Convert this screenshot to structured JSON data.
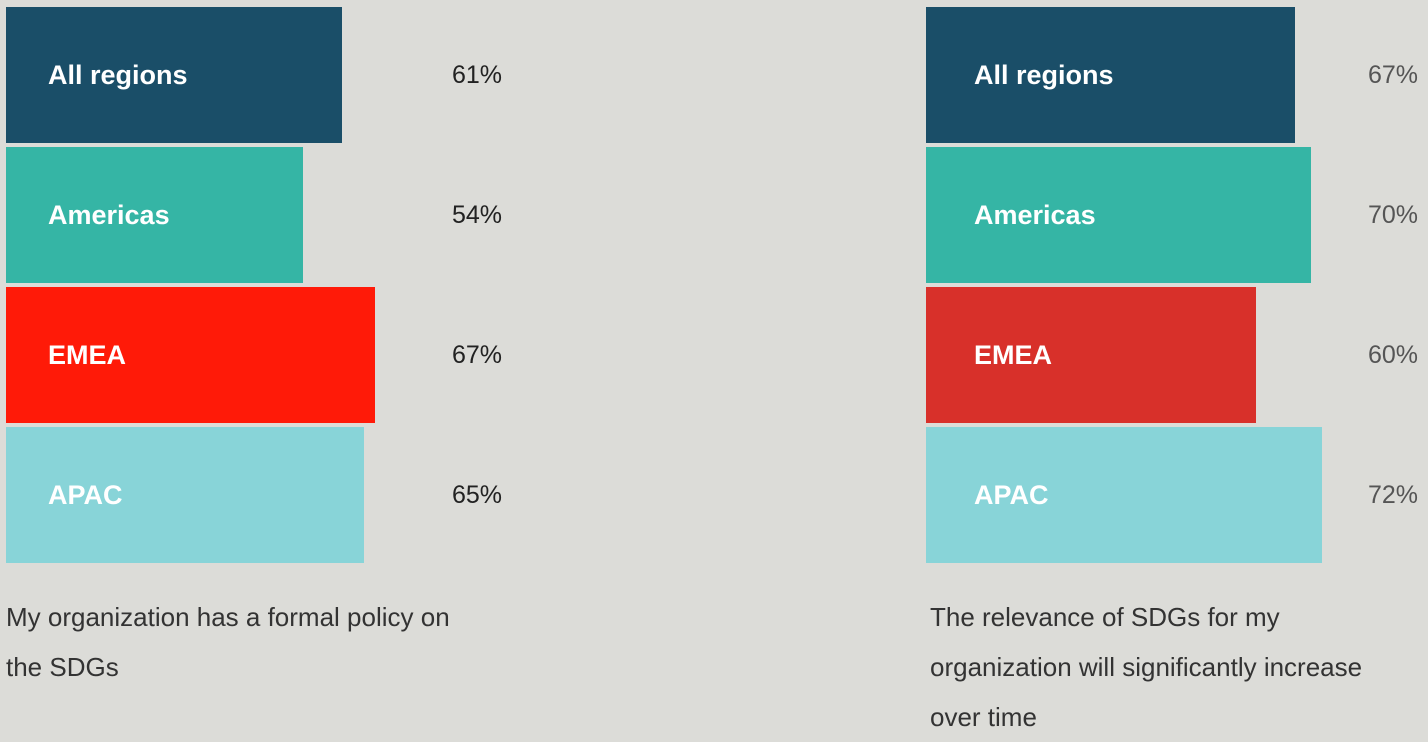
{
  "chart_data": [
    {
      "type": "bar",
      "orientation": "horizontal",
      "categories": [
        "All regions",
        "Americas",
        "EMEA",
        "APAC"
      ],
      "values": [
        61,
        54,
        67,
        65
      ],
      "value_labels": [
        "61%",
        "54%",
        "67%",
        "65%"
      ],
      "colors": [
        "#1a4e68",
        "#35b5a5",
        "#ff1a08",
        "#88d4d8"
      ],
      "caption": "My organization has a formal policy on the SDGs"
    },
    {
      "type": "bar",
      "orientation": "horizontal",
      "categories": [
        "All regions",
        "Americas",
        "EMEA",
        "APAC"
      ],
      "values": [
        67,
        70,
        60,
        72
      ],
      "value_labels": [
        "67%",
        "70%",
        "60%",
        "72%"
      ],
      "colors": [
        "#1a4e68",
        "#35b5a5",
        "#d8302a",
        "#88d4d8"
      ],
      "caption": "The relevance of SDGs for my organization will significantly increase over time"
    }
  ]
}
